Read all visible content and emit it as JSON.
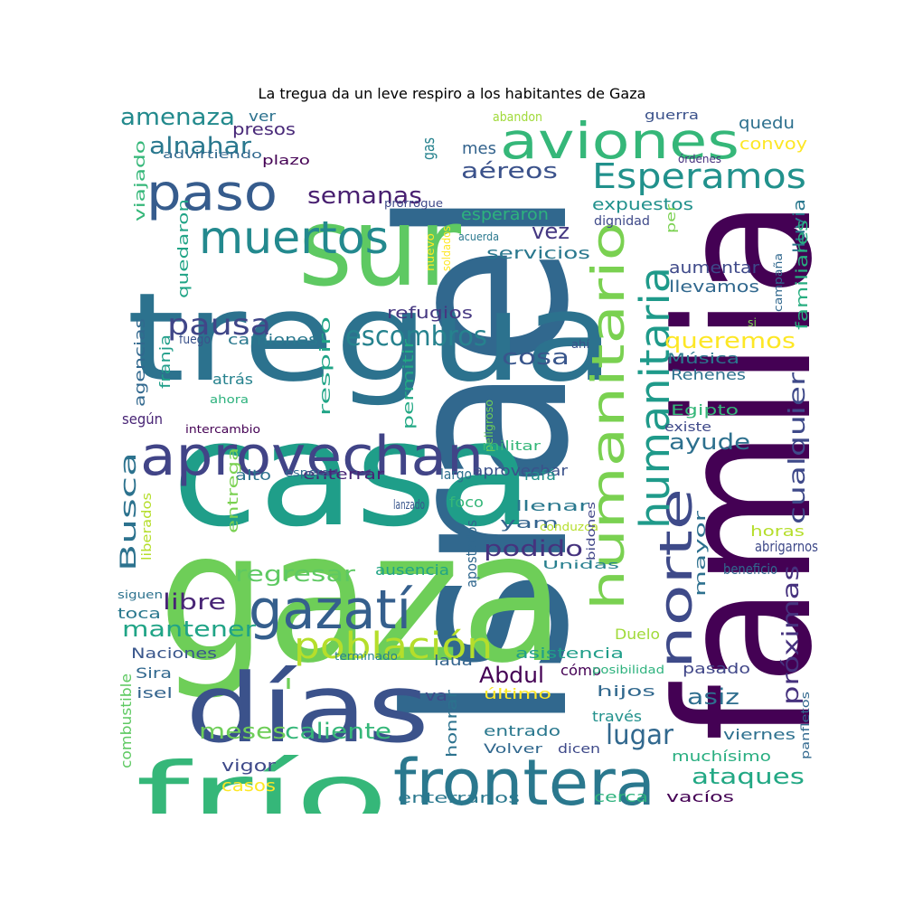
{
  "title": "La tregua da un leve respiro a los habitantes de Gaza",
  "words": [
    {
      "text": "Israel",
      "color": "#31688e"
    },
    {
      "text": "familia",
      "color": "#440154"
    },
    {
      "text": "gaza",
      "color": "#6ece58"
    },
    {
      "text": "casa",
      "color": "#1f9e89"
    },
    {
      "text": "tregua",
      "color": "#2c728e"
    },
    {
      "text": "sur",
      "color": "#5ec962"
    },
    {
      "text": "días",
      "color": "#3b528b"
    },
    {
      "text": "frío",
      "color": "#35b779"
    },
    {
      "text": "frontera",
      "color": "#2a788e"
    },
    {
      "text": "aprovechan",
      "color": "#414487"
    },
    {
      "text": "gazatí",
      "color": "#355f8d"
    },
    {
      "text": "aviones",
      "color": "#35b779"
    },
    {
      "text": "paso",
      "color": "#365c8d"
    },
    {
      "text": "muertos",
      "color": "#23898e"
    },
    {
      "text": "humanitario",
      "color": "#7ad151"
    },
    {
      "text": "norte",
      "color": "#3e4a89"
    },
    {
      "text": "humanitaria",
      "color": "#1f9a8a"
    },
    {
      "text": "población",
      "color": "#b5de2b"
    },
    {
      "text": "Esperamos",
      "color": "#21918c"
    },
    {
      "text": "pausa",
      "color": "#404688"
    },
    {
      "text": "escombros",
      "color": "#26828e"
    },
    {
      "text": "semanas",
      "color": "#481f70"
    },
    {
      "text": "amenaza",
      "color": "#238a8d"
    },
    {
      "text": "alnahar",
      "color": "#2a788e"
    },
    {
      "text": "aéreos",
      "color": "#3b528b"
    },
    {
      "text": "Abdul",
      "color": "#440154"
    },
    {
      "text": "meses",
      "color": "#6ece58"
    },
    {
      "text": "caliente",
      "color": "#35b779"
    },
    {
      "text": "lugar",
      "color": "#31688e"
    },
    {
      "text": "cualquier",
      "color": "#3e4989"
    },
    {
      "text": "próximas",
      "color": "#46327e"
    },
    {
      "text": "ataques",
      "color": "#22a884"
    },
    {
      "text": "queremos",
      "color": "#fde725"
    },
    {
      "text": "ayude",
      "color": "#2d708e"
    },
    {
      "text": "podido",
      "color": "#46337e"
    },
    {
      "text": "cosa",
      "color": "#39568c"
    },
    {
      "text": "vez",
      "color": "#453882"
    },
    {
      "text": "Busca",
      "color": "#2c728e"
    },
    {
      "text": "libre",
      "color": "#482475"
    },
    {
      "text": "mantener",
      "color": "#20a486"
    },
    {
      "text": "regresar",
      "color": "#5ec962"
    },
    {
      "text": "asiz",
      "color": "#2e6e8e"
    },
    {
      "text": "refugios",
      "color": "#453781"
    },
    {
      "text": "expuestos",
      "color": "#21918c"
    },
    {
      "text": "esperaron",
      "color": "#2db27d"
    },
    {
      "text": "servicios",
      "color": "#2a788e"
    },
    {
      "text": "aumentar",
      "color": "#3e4989"
    },
    {
      "text": "llevamos",
      "color": "#31688e"
    },
    {
      "text": "lluvia",
      "color": "#2a788e"
    },
    {
      "text": "familiares",
      "color": "#28ae80"
    },
    {
      "text": "quedu",
      "color": "#2d708e"
    },
    {
      "text": "convoy",
      "color": "#fde725"
    },
    {
      "text": "presos",
      "color": "#482878"
    },
    {
      "text": "ver",
      "color": "#2c728e"
    },
    {
      "text": "gas",
      "color": "#26828e"
    },
    {
      "text": "mes",
      "color": "#33638d"
    },
    {
      "text": "abandon",
      "color": "#a0da39"
    },
    {
      "text": "guerra",
      "color": "#3b528b"
    },
    {
      "text": "órdenes",
      "color": "#46327e"
    },
    {
      "text": "advirtiendo",
      "color": "#31688e"
    },
    {
      "text": "plazo",
      "color": "#440154"
    },
    {
      "text": "viajado",
      "color": "#35b779"
    },
    {
      "text": "prorrogue",
      "color": "#3e4989"
    },
    {
      "text": "soldados",
      "color": "#fde725"
    },
    {
      "text": "nuevo",
      "color": "#fde725"
    },
    {
      "text": "acuerda",
      "color": "#2a788e"
    },
    {
      "text": "dignidad",
      "color": "#3e4989"
    },
    {
      "text": "per",
      "color": "#7ad151"
    },
    {
      "text": "quedaron",
      "color": "#20a486"
    },
    {
      "text": "campaña",
      "color": "#31688e"
    },
    {
      "text": "si",
      "color": "#7ad151"
    },
    {
      "text": "camiones",
      "color": "#2a788e"
    },
    {
      "text": "fuego",
      "color": "#3b528b"
    },
    {
      "text": "agencias",
      "color": "#31688e"
    },
    {
      "text": "franja",
      "color": "#1f9e89"
    },
    {
      "text": "atrás",
      "color": "#26828e"
    },
    {
      "text": "ahora",
      "color": "#2db27d"
    },
    {
      "text": "según",
      "color": "#482475"
    },
    {
      "text": "intercambio",
      "color": "#440154"
    },
    {
      "text": "respiro",
      "color": "#20a486"
    },
    {
      "text": "permitir",
      "color": "#22a884"
    },
    {
      "text": "peligroso",
      "color": "#6ece58"
    },
    {
      "text": "ahí",
      "color": "#3b528b"
    },
    {
      "text": "Música",
      "color": "#2a788e"
    },
    {
      "text": "Rehenes",
      "color": "#2c728e"
    },
    {
      "text": "Egipto",
      "color": "#35b779"
    },
    {
      "text": "existe",
      "color": "#3e4989"
    },
    {
      "text": "militar",
      "color": "#35b779"
    },
    {
      "text": "aprovechar",
      "color": "#3b528b"
    },
    {
      "text": "enterrar",
      "color": "#482475"
    },
    {
      "text": "alto",
      "color": "#2c728e"
    },
    {
      "text": "espera",
      "color": "#31688e"
    },
    {
      "text": "largo",
      "color": "#2d708e"
    },
    {
      "text": "rafá",
      "color": "#21918c"
    },
    {
      "text": "llenar",
      "color": "#2a788e"
    },
    {
      "text": "yam",
      "color": "#33638d"
    },
    {
      "text": "foco",
      "color": "#35b779"
    },
    {
      "text": "lanzado",
      "color": "#39568c"
    },
    {
      "text": "conduzca",
      "color": "#b5de2b"
    },
    {
      "text": "liberados",
      "color": "#b5de2b"
    },
    {
      "text": "entrega",
      "color": "#7ad151"
    },
    {
      "text": "apostados",
      "color": "#31688e"
    },
    {
      "text": "bidones",
      "color": "#404688"
    },
    {
      "text": "abrigarnos",
      "color": "#3e4989"
    },
    {
      "text": "mayor",
      "color": "#2d708e"
    },
    {
      "text": "horas",
      "color": "#b5de2b"
    },
    {
      "text": "beneficio",
      "color": "#31688e"
    },
    {
      "text": "Unidas",
      "color": "#277f8e"
    },
    {
      "text": "ausencia",
      "color": "#20a486"
    },
    {
      "text": "siguen",
      "color": "#2c728e"
    },
    {
      "text": "toca",
      "color": "#2a788e"
    },
    {
      "text": "Duelo",
      "color": "#a0da39"
    },
    {
      "text": "Naciones",
      "color": "#39568c"
    },
    {
      "text": "terminado",
      "color": "#26828e"
    },
    {
      "text": "laua",
      "color": "#33638d"
    },
    {
      "text": "asistencia",
      "color": "#1f9e89"
    },
    {
      "text": "cómo",
      "color": "#440154"
    },
    {
      "text": "posibilidad",
      "color": "#2db27d"
    },
    {
      "text": "pasado",
      "color": "#404688"
    },
    {
      "text": "Sira",
      "color": "#31688e"
    },
    {
      "text": "isel",
      "color": "#33638d"
    },
    {
      "text": "l",
      "color": "#6ece58"
    },
    {
      "text": "va",
      "color": "#3e4989"
    },
    {
      "text": "último",
      "color": "#fde725"
    },
    {
      "text": "hijos",
      "color": "#31688e"
    },
    {
      "text": "combustible",
      "color": "#5ec962"
    },
    {
      "text": "honrar",
      "color": "#2c728e"
    },
    {
      "text": "panfletos",
      "color": "#31688e"
    },
    {
      "text": "través",
      "color": "#21918c"
    },
    {
      "text": "viernes",
      "color": "#2d708e"
    },
    {
      "text": "entrado",
      "color": "#2a788e"
    },
    {
      "text": "muchísimo",
      "color": "#28ae80"
    },
    {
      "text": "Volver",
      "color": "#31688e"
    },
    {
      "text": "dicen",
      "color": "#3e4989"
    },
    {
      "text": "vigor",
      "color": "#3e4989"
    },
    {
      "text": "casos",
      "color": "#fde725"
    },
    {
      "text": "enterrarlos",
      "color": "#2a788e"
    },
    {
      "text": "cerca",
      "color": "#2db27d"
    },
    {
      "text": "vacíos",
      "color": "#440154"
    }
  ]
}
